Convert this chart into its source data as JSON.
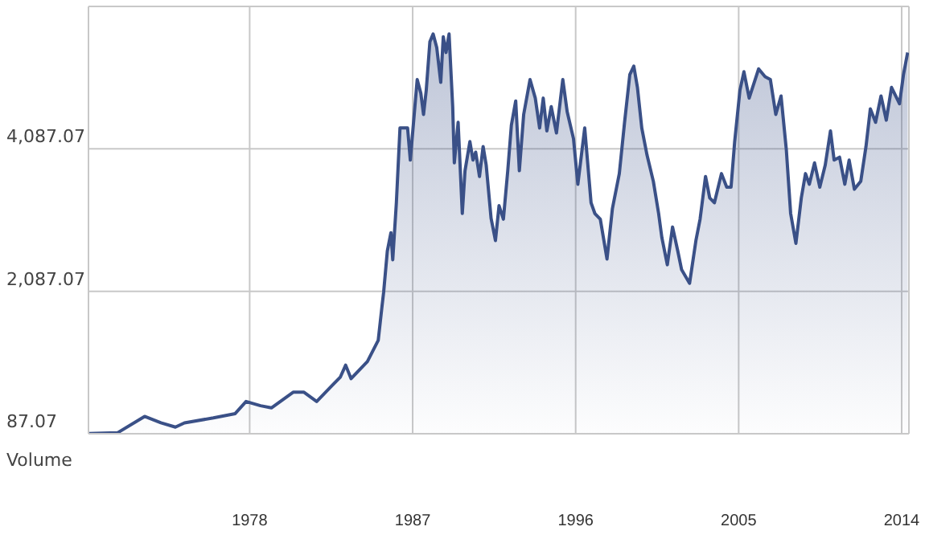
{
  "chart_data": {
    "type": "area",
    "x": [
      1969.1,
      1970.7,
      1972.2,
      1973.1,
      1973.9,
      1974.4,
      1976.0,
      1977.2,
      1977.8,
      1978.6,
      1979.2,
      1980.4,
      1981.0,
      1981.7,
      1982.5,
      1983.0,
      1983.3,
      1983.6,
      1984.5,
      1985.1,
      1985.3,
      1985.4,
      1985.6,
      1985.8,
      1985.9,
      1986.1,
      1986.3,
      1986.72,
      1986.87,
      1987.25,
      1987.45,
      1987.6,
      1987.75,
      1987.95,
      1988.13,
      1988.33,
      1988.55,
      1988.69,
      1988.84,
      1989.01,
      1989.21,
      1989.3,
      1989.51,
      1989.74,
      1989.89,
      1990.16,
      1990.33,
      1990.48,
      1990.69,
      1990.89,
      1991.06,
      1991.33,
      1991.57,
      1991.77,
      1992.01,
      1992.25,
      1992.45,
      1992.69,
      1992.89,
      1993.13,
      1993.48,
      1993.77,
      1994.01,
      1994.21,
      1994.41,
      1994.65,
      1994.94,
      1995.29,
      1995.53,
      1995.88,
      1996.12,
      1996.5,
      1996.85,
      1997.06,
      1997.36,
      1997.73,
      1998.03,
      1998.41,
      1998.7,
      1998.99,
      1999.21,
      1999.41,
      1999.65,
      1999.94,
      2000.29,
      2000.58,
      2000.76,
      2001.06,
      2001.35,
      2001.64,
      2001.85,
      2002.29,
      2002.64,
      2002.87,
      2003.17,
      2003.4,
      2003.66,
      2004.05,
      2004.34,
      2004.58,
      2004.78,
      2005.07,
      2005.29,
      2005.58,
      2006.1,
      2006.46,
      2006.75,
      2007.05,
      2007.34,
      2007.63,
      2007.87,
      2008.16,
      2008.46,
      2008.69,
      2008.9,
      2009.19,
      2009.48,
      2009.78,
      2010.07,
      2010.27,
      2010.57,
      2010.86,
      2011.1,
      2011.39,
      2011.74,
      2012.03,
      2012.27,
      2012.56,
      2012.86,
      2013.15,
      2013.44,
      2013.88,
      2014.1,
      2014.33
    ],
    "series": [
      {
        "color": "#3a5087",
        "values": [
          90,
          100,
          330,
          240,
          180,
          240,
          310,
          370,
          540,
          480,
          450,
          670,
          670,
          540,
          750,
          880,
          1050,
          860,
          1100,
          1400,
          1860,
          2080,
          2650,
          2910,
          2530,
          3330,
          4380,
          4380,
          3930,
          5060,
          4870,
          4570,
          4910,
          5590,
          5700,
          5510,
          5020,
          5660,
          5440,
          5700,
          4680,
          3890,
          4460,
          3180,
          3780,
          4190,
          3930,
          4040,
          3700,
          4120,
          3860,
          3110,
          2800,
          3290,
          3100,
          3780,
          4420,
          4760,
          3780,
          4570,
          5060,
          4800,
          4380,
          4800,
          4340,
          4680,
          4310,
          5060,
          4610,
          4230,
          3590,
          4380,
          3330,
          3180,
          3100,
          2540,
          3250,
          3740,
          4460,
          5130,
          5250,
          4950,
          4380,
          4000,
          3630,
          3180,
          2840,
          2460,
          2990,
          2650,
          2390,
          2200,
          2800,
          3100,
          3700,
          3400,
          3330,
          3740,
          3550,
          3550,
          4190,
          4910,
          5170,
          4800,
          5210,
          5100,
          5060,
          4570,
          4830,
          4080,
          3180,
          2760,
          3400,
          3740,
          3590,
          3890,
          3550,
          3860,
          4340,
          3930,
          3970,
          3590,
          3930,
          3520,
          3630,
          4120,
          4650,
          4460,
          4830,
          4490,
          4950,
          4720,
          5130,
          5440
        ]
      }
    ],
    "xlim": [
      1969.1,
      2014.4
    ],
    "ylim": [
      87.07,
      6087.07
    ],
    "xticks": [
      1978,
      1987,
      1996,
      2005,
      2014
    ],
    "yticks": [
      {
        "value": 87.07,
        "label": "87.07"
      },
      {
        "value": 2087.07,
        "label": "2,087.07"
      },
      {
        "value": 4087.07,
        "label": "4,087.07"
      }
    ],
    "grid": true,
    "annotations": [
      "Volume"
    ]
  }
}
